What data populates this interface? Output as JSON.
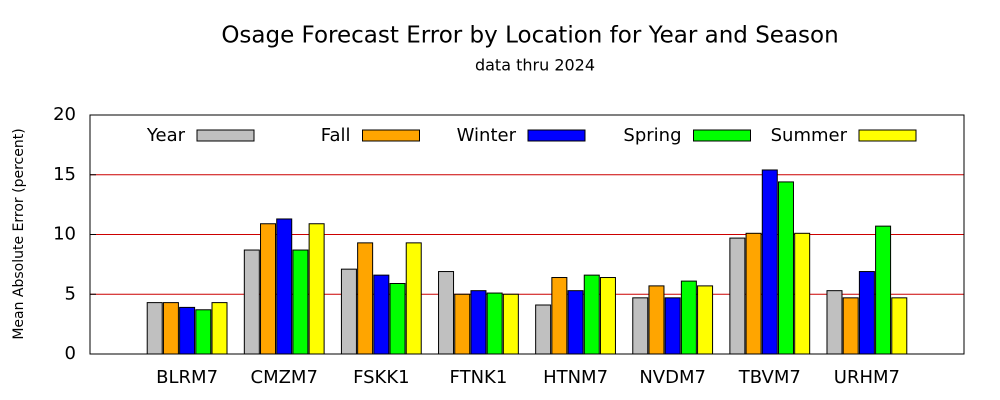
{
  "chart_data": {
    "type": "bar",
    "title": "Osage Forecast Error by Location for Year and Season",
    "subtitle": "data thru 2024",
    "y_label": "Mean Absolute Error (percent)",
    "categories": [
      "BLRM7",
      "CMZM7",
      "FSKK1",
      "FTNK1",
      "HTNM7",
      "NVDM7",
      "TBVM7",
      "URHM7"
    ],
    "series": [
      {
        "name": "Year",
        "color": "#c0c0c0",
        "values": [
          4.3,
          8.7,
          7.1,
          6.9,
          4.1,
          4.7,
          9.7,
          5.3
        ]
      },
      {
        "name": "Fall",
        "color": "#ffa500",
        "values": [
          4.3,
          10.9,
          9.3,
          5.0,
          6.4,
          5.7,
          10.1,
          4.7
        ]
      },
      {
        "name": "Winter",
        "color": "#0000ff",
        "values": [
          3.9,
          11.3,
          6.6,
          5.3,
          5.3,
          4.7,
          15.4,
          6.9
        ]
      },
      {
        "name": "Spring",
        "color": "#00ff00",
        "values": [
          3.7,
          8.7,
          5.9,
          5.1,
          6.6,
          6.1,
          14.4,
          10.7
        ]
      },
      {
        "name": "Summer",
        "color": "#ffff00",
        "values": [
          4.3,
          10.9,
          9.3,
          5.0,
          6.4,
          5.7,
          10.1,
          4.7
        ]
      }
    ],
    "ylim": [
      0,
      20
    ],
    "yticks": [
      0,
      5,
      10,
      15,
      20
    ],
    "grid": true,
    "grid_color": "#cc0000",
    "legend": "top"
  }
}
